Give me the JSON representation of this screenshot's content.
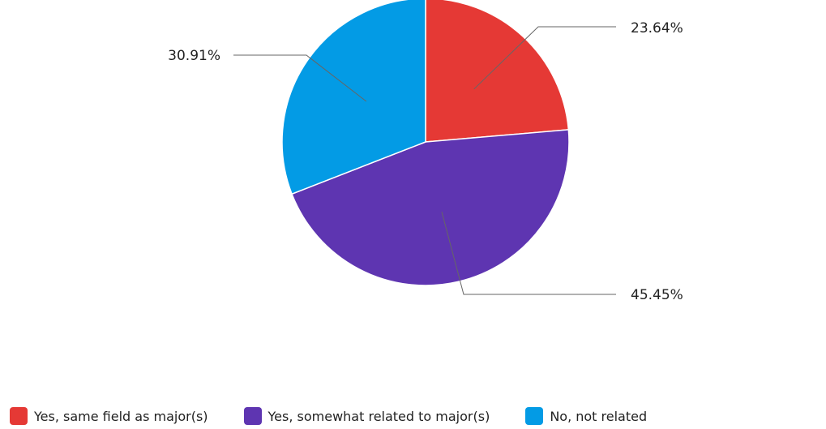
{
  "chart_data": {
    "type": "pie",
    "title": "",
    "slices": [
      {
        "label": "Yes, same field as major(s)",
        "value": 23.64,
        "value_label": "23.64%",
        "color": "#e53935"
      },
      {
        "label": "Yes, somewhat related to major(s)",
        "value": 45.45,
        "value_label": "45.45%",
        "color": "#5e35b1"
      },
      {
        "label": "No, not related",
        "value": 30.91,
        "value_label": "30.91%",
        "color": "#039be5"
      }
    ],
    "start_angle": "12 o'clock",
    "direction": "clockwise",
    "legend_position": "bottom"
  }
}
